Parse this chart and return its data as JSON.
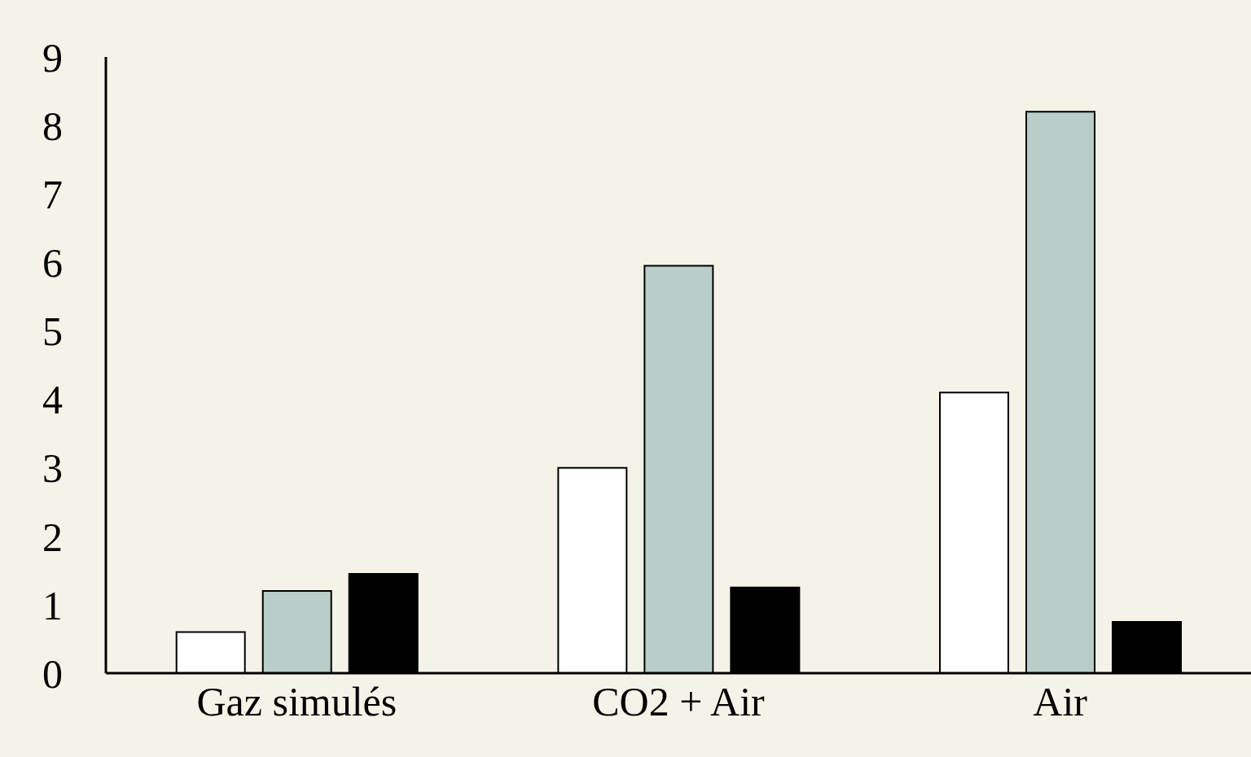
{
  "chart_data": {
    "type": "bar",
    "categories": [
      "Gaz simulés",
      "CO2 + Air",
      "Air"
    ],
    "series": [
      {
        "color": "#ffffff",
        "values": [
          0.6,
          3.0,
          4.1
        ]
      },
      {
        "color": "#b9cdc9",
        "values": [
          1.2,
          5.95,
          8.2
        ]
      },
      {
        "color": "#000000",
        "values": [
          1.45,
          1.25,
          0.75
        ]
      }
    ],
    "ylim": [
      0,
      9
    ],
    "yticks": [
      0,
      1,
      2,
      3,
      4,
      5,
      6,
      7,
      8,
      9
    ],
    "grid": false,
    "legend": false
  }
}
